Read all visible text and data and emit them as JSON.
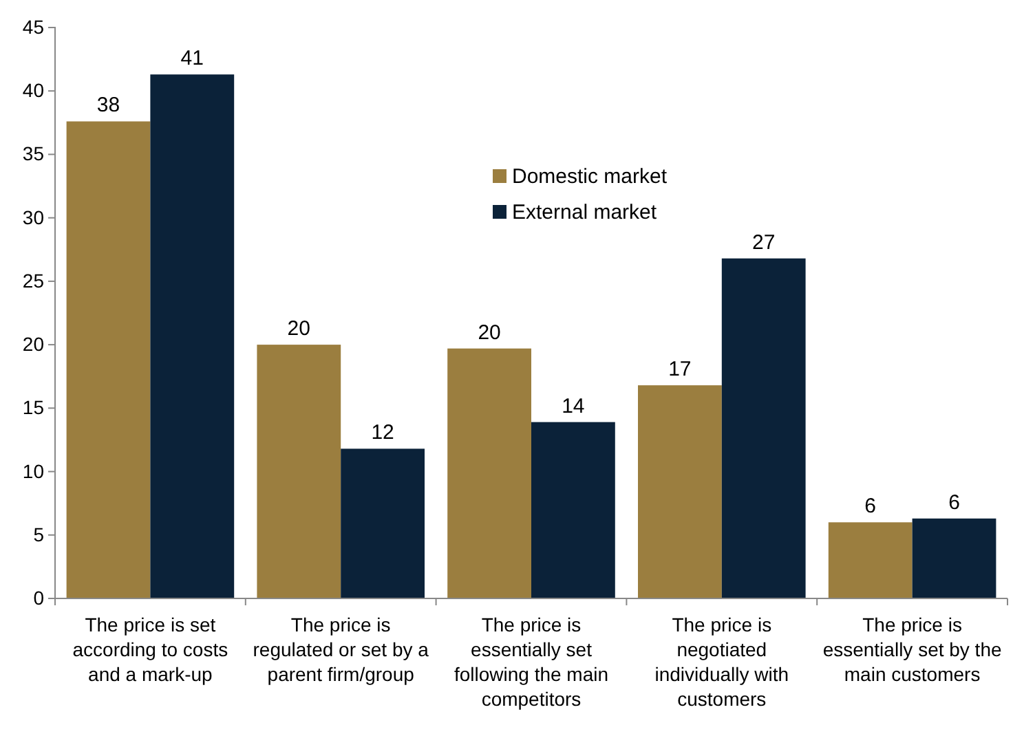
{
  "chart_data": {
    "type": "bar",
    "categories": [
      "The price is set according to costs and a mark-up",
      "The price is regulated or set by a parent firm/group",
      "The price is essentially set following the main competitors",
      "The price is negotiated individually with customers",
      "The price is essentially set by the main customers"
    ],
    "series": [
      {
        "name": "Domestic market",
        "color": "#9b7e3f",
        "values": [
          37.6,
          20.0,
          19.7,
          16.8,
          6.0
        ],
        "value_labels": [
          "38",
          "20",
          "20",
          "17",
          "6"
        ]
      },
      {
        "name": "External market",
        "color": "#0b2239",
        "values": [
          41.3,
          11.8,
          13.9,
          26.8,
          6.3
        ],
        "value_labels": [
          "41",
          "12",
          "14",
          "27",
          "6"
        ]
      }
    ],
    "ylim": [
      0,
      45
    ],
    "yticks": [
      0,
      5,
      10,
      15,
      20,
      25,
      30,
      35,
      40,
      45
    ],
    "grid": false,
    "legend": "top"
  }
}
